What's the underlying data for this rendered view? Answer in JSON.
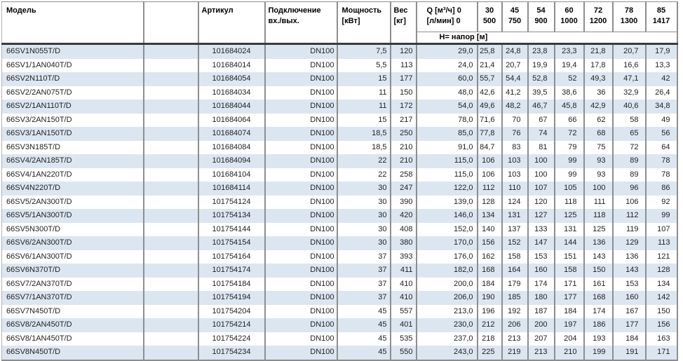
{
  "table": {
    "header": {
      "model": "Модель",
      "article": "Артикул",
      "connection_line1": "Подключение",
      "connection_line2": "вх./вых.",
      "power_line1": "Мощность",
      "power_line2": "[кВт]",
      "weight_line1": "Вес",
      "weight_line2": "[кг]",
      "q_line1": "Q [м³/ч] 0",
      "q_line2": "[л/мин] 0",
      "head_label": "H= напор [м]",
      "flow_columns": [
        {
          "m3h": "30",
          "lmin": "500"
        },
        {
          "m3h": "45",
          "lmin": "750"
        },
        {
          "m3h": "54",
          "lmin": "900"
        },
        {
          "m3h": "60",
          "lmin": "1000"
        },
        {
          "m3h": "72",
          "lmin": "1200"
        },
        {
          "m3h": "78",
          "lmin": "1300"
        },
        {
          "m3h": "85",
          "lmin": "1417"
        }
      ]
    },
    "rows": [
      {
        "model": "66SV1N055T/D",
        "article": "101684024",
        "connection": "DN100",
        "power": "7,5",
        "weight": "120",
        "q0": "29,0",
        "heads": [
          "25,8",
          "24,8",
          "23,8",
          "23,3",
          "21,8",
          "20,7",
          "17,9"
        ]
      },
      {
        "model": "66SV1/1AN040T/D",
        "article": "101684014",
        "connection": "DN100",
        "power": "5,5",
        "weight": "113",
        "q0": "24,0",
        "heads": [
          "21,4",
          "20,7",
          "19,9",
          "19,4",
          "17,8",
          "16,6",
          "13,3"
        ]
      },
      {
        "model": "66SV2N110T/D",
        "article": "101684054",
        "connection": "DN100",
        "power": "15",
        "weight": "177",
        "q0": "60,0",
        "heads": [
          "55,7",
          "54,4",
          "52,8",
          "52",
          "49,3",
          "47,1",
          "42"
        ]
      },
      {
        "model": "66SV2/2AN075T/D",
        "article": "101684034",
        "connection": "DN100",
        "power": "11",
        "weight": "150",
        "q0": "48,0",
        "heads": [
          "42,6",
          "41,2",
          "39,5",
          "38,6",
          "36",
          "32,9",
          "26,4"
        ]
      },
      {
        "model": "66SV2/1AN110T/D",
        "article": "101684044",
        "connection": "DN100",
        "power": "11",
        "weight": "172",
        "q0": "54,0",
        "heads": [
          "49,6",
          "48,2",
          "46,7",
          "45,8",
          "42,9",
          "40,6",
          "34,8"
        ]
      },
      {
        "model": "66SV3/2AN150T/D",
        "article": "101684064",
        "connection": "DN100",
        "power": "15",
        "weight": "217",
        "q0": "78,0",
        "heads": [
          "71,6",
          "70",
          "67",
          "66",
          "62",
          "58",
          "49"
        ]
      },
      {
        "model": "66SV3/1AN150T/D",
        "article": "101684074",
        "connection": "DN100",
        "power": "18,5",
        "weight": "250",
        "q0": "85,0",
        "heads": [
          "77,8",
          "76",
          "74",
          "72",
          "68",
          "65",
          "56"
        ]
      },
      {
        "model": "66SV3N185T/D",
        "article": "101684084",
        "connection": "DN100",
        "power": "18,5",
        "weight": "210",
        "q0": "91,0",
        "heads": [
          "84,7",
          "83",
          "81",
          "79",
          "75",
          "72",
          "64"
        ]
      },
      {
        "model": "66SV4/2AN185T/D",
        "article": "101684094",
        "connection": "DN100",
        "power": "22",
        "weight": "210",
        "q0": "115,0",
        "heads": [
          "106",
          "103",
          "100",
          "99",
          "93",
          "89",
          "78"
        ]
      },
      {
        "model": "66SV4/1AN220T/D",
        "article": "101684104",
        "connection": "DN100",
        "power": "22",
        "weight": "258",
        "q0": "115,0",
        "heads": [
          "106",
          "103",
          "100",
          "99",
          "93",
          "89",
          "78"
        ]
      },
      {
        "model": "66SV4N220T/D",
        "article": "101684114",
        "connection": "DN100",
        "power": "30",
        "weight": "247",
        "q0": "122,0",
        "heads": [
          "112",
          "110",
          "107",
          "105",
          "100",
          "96",
          "86"
        ]
      },
      {
        "model": "66SV5/2AN300T/D",
        "article": "101754124",
        "connection": "DN100",
        "power": "30",
        "weight": "390",
        "q0": "139,0",
        "heads": [
          "128",
          "124",
          "120",
          "118",
          "111",
          "106",
          "92"
        ]
      },
      {
        "model": "66SV5/1AN300T/D",
        "article": "101754134",
        "connection": "DN100",
        "power": "30",
        "weight": "420",
        "q0": "146,0",
        "heads": [
          "134",
          "131",
          "127",
          "125",
          "118",
          "112",
          "99"
        ]
      },
      {
        "model": "66SV5N300T/D",
        "article": "101754144",
        "connection": "DN100",
        "power": "30",
        "weight": "408",
        "q0": "152,0",
        "heads": [
          "140",
          "137",
          "133",
          "131",
          "125",
          "119",
          "107"
        ]
      },
      {
        "model": "66SV6/2AN300T/D",
        "article": "101754154",
        "connection": "DN100",
        "power": "30",
        "weight": "380",
        "q0": "170,0",
        "heads": [
          "156",
          "152",
          "147",
          "144",
          "136",
          "129",
          "113"
        ]
      },
      {
        "model": "66SV6/1AN300T/D",
        "article": "101754164",
        "connection": "DN100",
        "power": "37",
        "weight": "393",
        "q0": "176,0",
        "heads": [
          "162",
          "158",
          "153",
          "151",
          "143",
          "136",
          "121"
        ]
      },
      {
        "model": "66SV6N370T/D",
        "article": "101754174",
        "connection": "DN100",
        "power": "37",
        "weight": "411",
        "q0": "182,0",
        "heads": [
          "168",
          "164",
          "160",
          "158",
          "150",
          "143",
          "128"
        ]
      },
      {
        "model": "66SV7/2AN370T/D",
        "article": "101754184",
        "connection": "DN100",
        "power": "37",
        "weight": "410",
        "q0": "200,0",
        "heads": [
          "184",
          "179",
          "174",
          "171",
          "161",
          "153",
          "134"
        ]
      },
      {
        "model": "66SV7/1AN370T/D",
        "article": "101754194",
        "connection": "DN100",
        "power": "37",
        "weight": "410",
        "q0": "206,0",
        "heads": [
          "190",
          "185",
          "180",
          "177",
          "168",
          "160",
          "142"
        ]
      },
      {
        "model": "66SV7N450T/D",
        "article": "101754204",
        "connection": "DN100",
        "power": "45",
        "weight": "557",
        "q0": "213,0",
        "heads": [
          "196",
          "192",
          "187",
          "184",
          "174",
          "167",
          "150"
        ]
      },
      {
        "model": "66SV8/2AN450T/D",
        "article": "101754214",
        "connection": "DN100",
        "power": "45",
        "weight": "401",
        "q0": "230,0",
        "heads": [
          "212",
          "206",
          "200",
          "197",
          "186",
          "177",
          "156"
        ]
      },
      {
        "model": "66SV8/1AN450T/D",
        "article": "101754224",
        "connection": "DN100",
        "power": "45",
        "weight": "535",
        "q0": "237,0",
        "heads": [
          "218",
          "213",
          "207",
          "204",
          "193",
          "184",
          "163"
        ]
      },
      {
        "model": "66SV8N450T/D",
        "article": "101754234",
        "connection": "DN100",
        "power": "45",
        "weight": "550",
        "q0": "243,0",
        "heads": [
          "225",
          "219",
          "213",
          "210",
          "199",
          "191",
          "171"
        ]
      }
    ],
    "colors": {
      "stripe": "#dce6f1",
      "grid_line": "#8e8e8e",
      "header_rule": "#3a3a3a",
      "text": "#222222"
    }
  }
}
